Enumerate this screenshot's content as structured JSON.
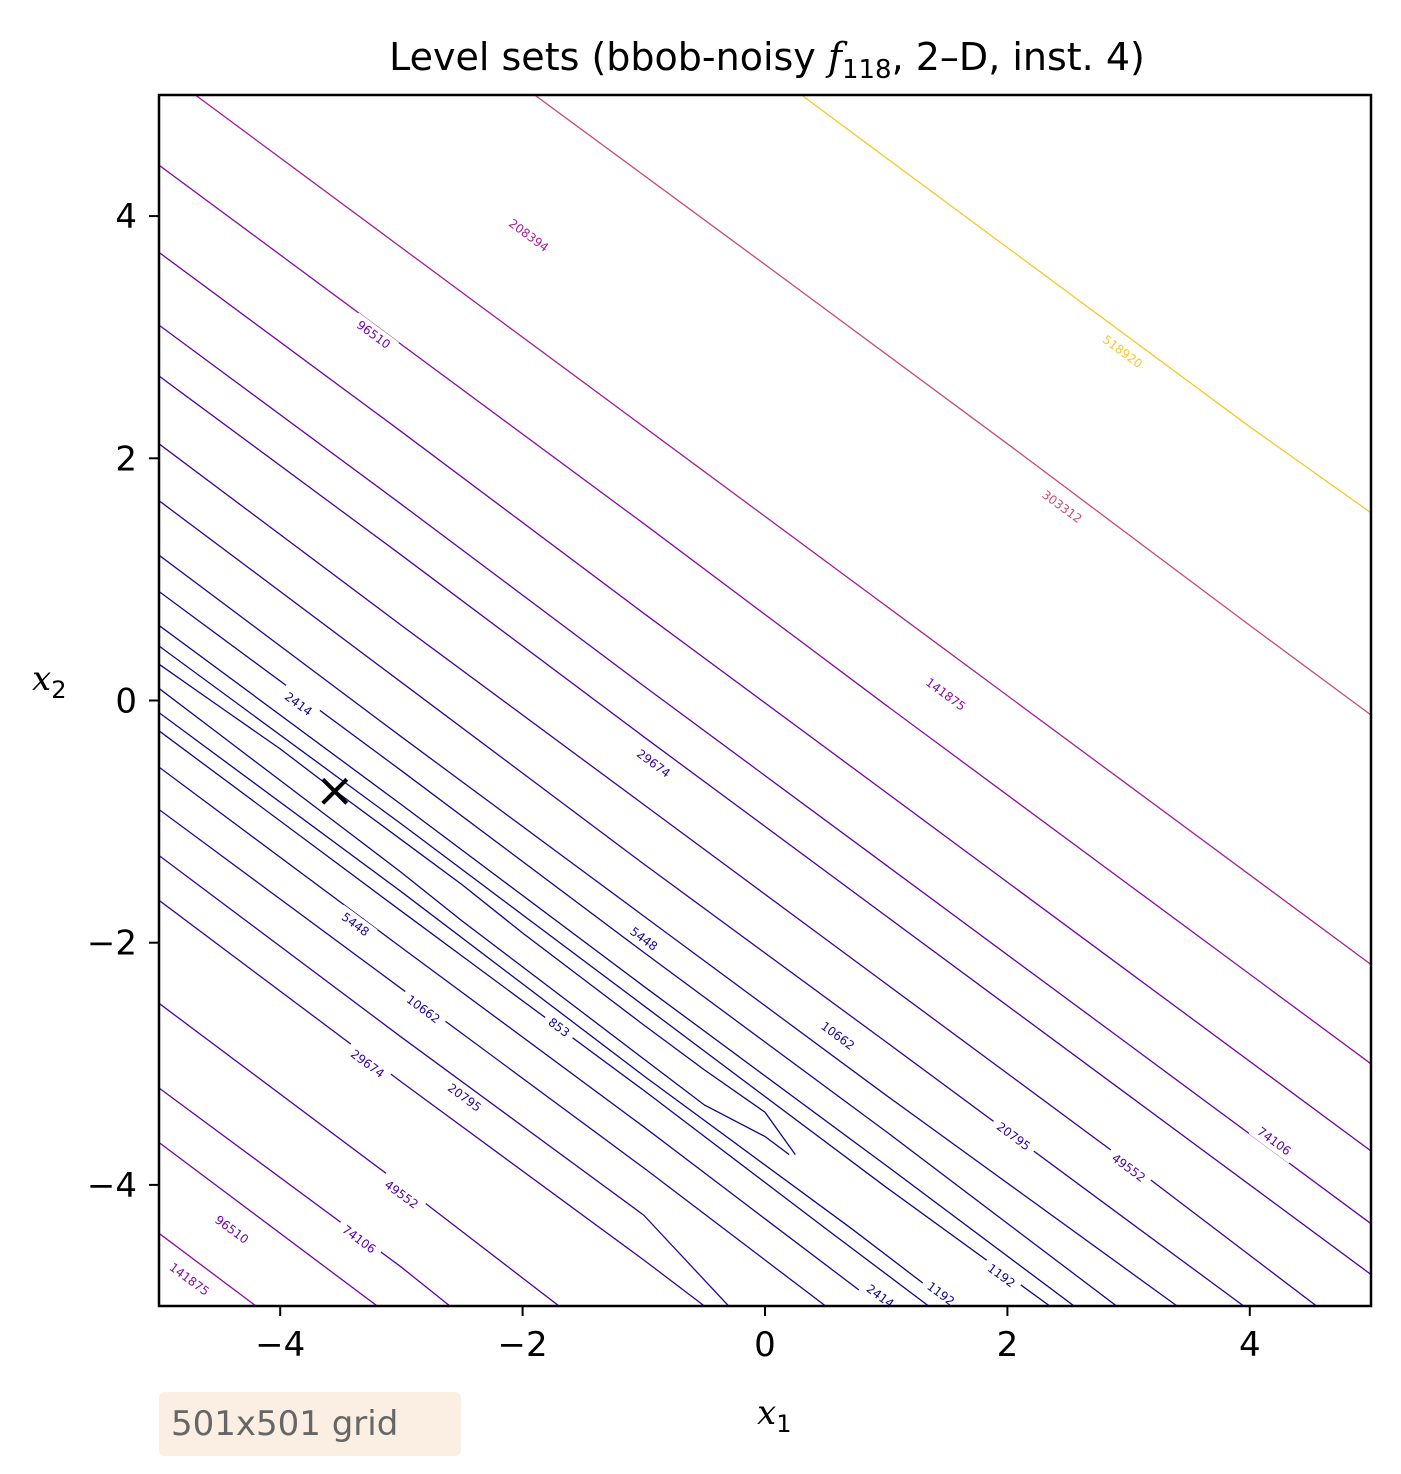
{
  "chart_data": {
    "type": "contour",
    "title": {
      "prefix": "Level sets (bbob-noisy ",
      "func_symbol": "f",
      "func_index": "118",
      "suffix": ", 2–D, inst. 4)"
    },
    "xlabel": {
      "symbol": "x",
      "sub": "1"
    },
    "ylabel": {
      "symbol": "x",
      "sub": "2"
    },
    "xlim": [
      -5,
      5
    ],
    "ylim": [
      -5,
      5
    ],
    "xticks": [
      -4,
      -2,
      0,
      2,
      4
    ],
    "yticks": [
      -4,
      -2,
      0,
      2,
      4
    ],
    "xtick_labels": [
      "−4",
      "−2",
      "0",
      "2",
      "4"
    ],
    "ytick_labels": [
      "−4",
      "−2",
      "0",
      "2",
      "4"
    ],
    "grid": false,
    "colormap": "plasma",
    "minimum_marker": {
      "x": -3.55,
      "y": -0.75,
      "symbol": "×"
    },
    "levels": [
      {
        "value": 853,
        "label": "853",
        "color": "#0d0887",
        "segments": [
          [
            [
              -5.0,
              0.3
            ],
            [
              -4.5,
              -0.05
            ],
            [
              -4.0,
              -0.4
            ],
            [
              -3.5,
              -0.78
            ],
            [
              -3.0,
              -1.15
            ],
            [
              -2.5,
              -1.52
            ],
            [
              -2.0,
              -1.92
            ],
            [
              -1.5,
              -2.3
            ],
            [
              -1.0,
              -2.68
            ],
            [
              -0.5,
              -3.05
            ],
            [
              0.0,
              -3.4
            ],
            [
              0.25,
              -3.75
            ]
          ],
          [
            [
              -5.0,
              0.1
            ],
            [
              -4.5,
              -0.28
            ],
            [
              -4.0,
              -0.66
            ],
            [
              -3.5,
              -1.04
            ],
            [
              -3.0,
              -1.42
            ],
            [
              -2.5,
              -1.82
            ],
            [
              -2.0,
              -2.2
            ],
            [
              -1.5,
              -2.58
            ],
            [
              -1.0,
              -2.96
            ],
            [
              -0.5,
              -3.34
            ],
            [
              0.0,
              -3.6
            ],
            [
              0.2,
              -3.75
            ]
          ]
        ],
        "labels_at": [
          [
            -1.7,
            -2.7
          ]
        ]
      },
      {
        "value": 1192,
        "label": "1192",
        "color": "#0d0887",
        "segments": [
          [
            [
              -5.0,
              0.45
            ],
            [
              -3.0,
              -1.02
            ],
            [
              -1.0,
              -2.52
            ],
            [
              1.0,
              -4.02
            ],
            [
              2.35,
              -5.0
            ]
          ],
          [
            [
              -5.0,
              -0.1
            ],
            [
              -3.0,
              -1.58
            ],
            [
              -1.0,
              -3.1
            ],
            [
              0.7,
              -4.35
            ],
            [
              1.55,
              -5.0
            ]
          ]
        ],
        "labels_at": [
          [
            1.45,
            -4.9
          ],
          [
            1.95,
            -4.75
          ]
        ]
      },
      {
        "value": 2414,
        "label": "2414",
        "color": "#0d0887",
        "segments": [
          [
            [
              -5.0,
              0.62
            ],
            [
              -3.0,
              -0.86
            ],
            [
              -1.0,
              -2.36
            ],
            [
              1.0,
              -3.84
            ],
            [
              2.55,
              -5.0
            ]
          ],
          [
            [
              -5.0,
              -0.25
            ],
            [
              -3.0,
              -1.74
            ],
            [
              -1.0,
              -3.22
            ],
            [
              0.5,
              -4.36
            ],
            [
              1.35,
              -5.0
            ]
          ]
        ],
        "labels_at": [
          [
            -3.85,
            -0.03
          ],
          [
            0.95,
            -4.92
          ]
        ]
      },
      {
        "value": 5448,
        "label": "5448",
        "color": "#1c068f",
        "segments": [
          [
            [
              -5.0,
              0.9
            ],
            [
              -3.0,
              -0.58
            ],
            [
              -1.0,
              -2.08
            ],
            [
              1.0,
              -3.56
            ],
            [
              2.9,
              -5.0
            ]
          ],
          [
            [
              -5.0,
              -0.55
            ],
            [
              -3.0,
              -2.04
            ],
            [
              -1.0,
              -3.52
            ],
            [
              0.0,
              -4.28
            ],
            [
              0.95,
              -5.0
            ]
          ]
        ],
        "labels_at": [
          [
            -1.0,
            -1.97
          ],
          [
            -3.38,
            -1.85
          ]
        ]
      },
      {
        "value": 10662,
        "label": "10662",
        "color": "#260591",
        "segments": [
          [
            [
              -5.0,
              1.2
            ],
            [
              -3.0,
              -0.3
            ],
            [
              -1.0,
              -1.78
            ],
            [
              1.0,
              -3.26
            ],
            [
              3.4,
              -5.0
            ]
          ],
          [
            [
              -5.0,
              -0.9
            ],
            [
              -3.0,
              -2.38
            ],
            [
              -1.0,
              -3.86
            ],
            [
              0.0,
              -4.62
            ],
            [
              0.5,
              -5.0
            ]
          ]
        ],
        "labels_at": [
          [
            0.6,
            -2.77
          ],
          [
            -2.82,
            -2.55
          ]
        ]
      },
      {
        "value": 20795,
        "label": "20795",
        "color": "#300597",
        "segments": [
          [
            [
              -5.0,
              1.65
            ],
            [
              -3.0,
              0.15
            ],
            [
              -1.0,
              -1.35
            ],
            [
              1.0,
              -2.82
            ],
            [
              3.0,
              -4.3
            ],
            [
              3.95,
              -5.0
            ]
          ],
          [
            [
              -5.0,
              -1.28
            ],
            [
              -3.0,
              -2.78
            ],
            [
              -1.0,
              -4.25
            ],
            [
              -0.3,
              -5.0
            ]
          ]
        ],
        "labels_at": [
          [
            2.05,
            -3.6
          ],
          [
            -2.48,
            -3.28
          ]
        ]
      },
      {
        "value": 29674,
        "label": "29674",
        "color": "#3a049a",
        "segments": [
          [
            [
              -5.0,
              2.12
            ],
            [
              -3.0,
              0.62
            ],
            [
              -1.0,
              -0.86
            ],
            [
              1.0,
              -2.34
            ],
            [
              3.0,
              -3.82
            ],
            [
              4.55,
              -5.0
            ]
          ],
          [
            [
              -5.0,
              -1.65
            ],
            [
              -3.0,
              -3.15
            ],
            [
              -1.0,
              -4.62
            ],
            [
              -0.5,
              -5.0
            ]
          ]
        ],
        "labels_at": [
          [
            -0.92,
            -0.52
          ],
          [
            -3.28,
            -3.0
          ]
        ]
      },
      {
        "value": 49552,
        "label": "49552",
        "color": "#4c02a1",
        "segments": [
          [
            [
              -5.0,
              2.68
            ],
            [
              -3.0,
              1.2
            ],
            [
              -1.0,
              -0.3
            ],
            [
              1.0,
              -1.78
            ],
            [
              3.0,
              -3.26
            ],
            [
              5.0,
              -4.74
            ]
          ],
          [
            [
              -5.0,
              -2.5
            ],
            [
              -3.0,
              -4.0
            ],
            [
              -1.7,
              -5.0
            ]
          ]
        ],
        "labels_at": [
          [
            3.0,
            -3.86
          ],
          [
            -3.0,
            -4.08
          ]
        ]
      },
      {
        "value": 74106,
        "label": "74106",
        "color": "#6300a7",
        "segments": [
          [
            [
              -5.0,
              3.1
            ],
            [
              -3.0,
              1.62
            ],
            [
              -1.0,
              0.12
            ],
            [
              1.0,
              -1.36
            ],
            [
              3.0,
              -2.84
            ],
            [
              5.0,
              -4.32
            ]
          ],
          [
            [
              -5.0,
              -3.2
            ],
            [
              -3.0,
              -4.68
            ],
            [
              -2.6,
              -5.0
            ]
          ]
        ],
        "labels_at": [
          [
            4.2,
            -3.64
          ],
          [
            -3.35,
            -4.45
          ]
        ]
      },
      {
        "value": 96510,
        "label": "96510",
        "color": "#7201a8",
        "segments": [
          [
            [
              -5.0,
              3.7
            ],
            [
              -3.0,
              2.22
            ],
            [
              -1.0,
              0.72
            ],
            [
              1.0,
              -0.76
            ],
            [
              3.0,
              -2.24
            ],
            [
              5.0,
              -3.72
            ]
          ],
          [
            [
              -5.0,
              -3.65
            ],
            [
              -3.2,
              -5.0
            ]
          ]
        ],
        "labels_at": [
          [
            -3.23,
            3.02
          ],
          [
            -4.4,
            -4.37
          ]
        ]
      },
      {
        "value": 141875,
        "label": "141875",
        "color": "#8b0aa5",
        "segments": [
          [
            [
              -5.0,
              4.42
            ],
            [
              -3.0,
              2.94
            ],
            [
              -1.0,
              1.46
            ],
            [
              1.0,
              -0.04
            ],
            [
              3.0,
              -1.52
            ],
            [
              5.0,
              -3.0
            ]
          ],
          [
            [
              -5.0,
              -4.4
            ],
            [
              -4.2,
              -5.0
            ]
          ]
        ],
        "labels_at": [
          [
            1.49,
            0.05
          ],
          [
            -4.75,
            -4.78
          ]
        ]
      },
      {
        "value": 208394,
        "label": "208394",
        "color": "#a31e9a",
        "segments": [
          [
            [
              -4.7,
              5.0
            ],
            [
              -3.0,
              3.74
            ],
            [
              -1.0,
              2.26
            ],
            [
              1.0,
              0.78
            ],
            [
              3.0,
              -0.7
            ],
            [
              5.0,
              -2.18
            ]
          ]
        ],
        "labels_at": [
          [
            -1.95,
            3.84
          ]
        ]
      },
      {
        "value": 303312,
        "label": "303312",
        "color": "#cc4778",
        "segments": [
          [
            [
              -1.9,
              5.0
            ],
            [
              0.0,
              3.6
            ],
            [
              2.0,
              2.12
            ],
            [
              4.0,
              0.62
            ],
            [
              5.0,
              -0.12
            ]
          ]
        ],
        "labels_at": [
          [
            2.45,
            1.6
          ]
        ]
      },
      {
        "value": 518920,
        "label": "518920",
        "color": "#f9c628",
        "segments": [
          [
            [
              0.3,
              5.0
            ],
            [
              2.0,
              3.74
            ],
            [
              4.0,
              2.26
            ],
            [
              5.0,
              1.55
            ]
          ]
        ],
        "labels_at": [
          [
            2.95,
            2.88
          ]
        ]
      }
    ]
  },
  "grid_badge": {
    "text": "501x501 grid"
  }
}
